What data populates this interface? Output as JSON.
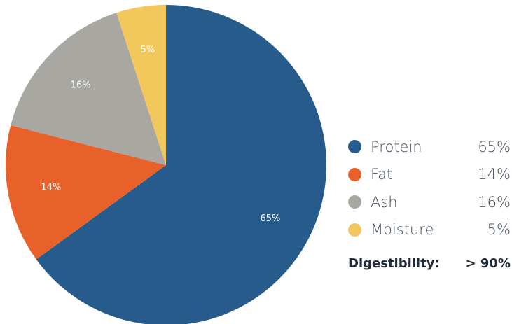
{
  "chart_data": {
    "type": "pie",
    "slices": [
      {
        "label": "Protein",
        "value": 65,
        "display": "65%",
        "color": "#265b8c"
      },
      {
        "label": "Fat",
        "value": 14,
        "display": "14%",
        "color": "#e8612a"
      },
      {
        "label": "Ash",
        "value": 16,
        "display": "16%",
        "color": "#a8a7a2"
      },
      {
        "label": "Moisture",
        "value": 5,
        "display": "5%",
        "color": "#f2c75c"
      }
    ],
    "legend_position": "right"
  },
  "summary": {
    "label": "Digestibility:",
    "value": "> 90%"
  }
}
